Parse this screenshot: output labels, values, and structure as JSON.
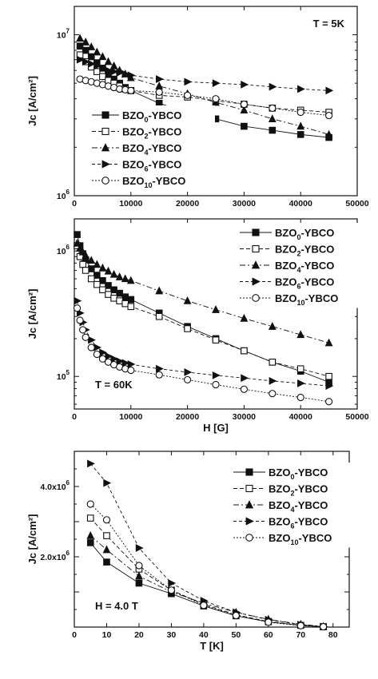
{
  "chart_data": [
    {
      "type": "scatter",
      "annotation": "T = 5K",
      "ylabel": "Jc [A/cm²]",
      "xlabel": "",
      "xlim": [
        0,
        50000
      ],
      "ylim": [
        1000000,
        15000000
      ],
      "yscale": "log",
      "xticks": [
        "0",
        "10000",
        "20000",
        "30000",
        "40000",
        "50000"
      ],
      "yticks": [
        {
          "mant": "10",
          "exp": "6",
          "value": 1000000
        },
        {
          "mant": "10",
          "exp": "7",
          "value": 10000000
        }
      ],
      "legend_position": "lower-left",
      "series": [
        {
          "name": "BZO₀-YBCO",
          "base": "BZO",
          "sub": "0",
          "suffix": "-YBCO",
          "marker": "square-filled",
          "x": [
            1000,
            2000,
            3000,
            4000,
            5000,
            6000,
            7000,
            8000,
            9000,
            10000,
            15000,
            20000,
            25000,
            30000,
            35000,
            40000,
            45000
          ],
          "y": [
            8500000,
            8000000,
            7300000,
            6700000,
            6200000,
            5700000,
            5300000,
            5000000,
            4700000,
            4500000,
            3750000,
            3300000,
            3000000,
            2700000,
            2550000,
            2400000,
            2300000
          ]
        },
        {
          "name": "BZO₂-YBCO",
          "base": "BZO",
          "sub": "2",
          "suffix": "-YBCO",
          "marker": "square-open",
          "x": [
            1000,
            2000,
            3000,
            4000,
            5000,
            6000,
            7000,
            8000,
            9000,
            10000,
            15000,
            20000,
            25000,
            30000,
            35000,
            40000,
            45000
          ],
          "y": [
            7500000,
            6800000,
            6300000,
            5900000,
            5500000,
            5200000,
            5000000,
            4800000,
            4600000,
            4500000,
            4200000,
            4100000,
            3900000,
            3700000,
            3500000,
            3400000,
            3300000
          ]
        },
        {
          "name": "BZO₄-YBCO",
          "base": "BZO",
          "sub": "4",
          "suffix": "-YBCO",
          "marker": "triangle-up",
          "x": [
            1000,
            2000,
            3000,
            4000,
            5000,
            6000,
            7000,
            8000,
            9000,
            10000,
            15000,
            20000,
            25000,
            30000,
            35000,
            40000,
            45000
          ],
          "y": [
            9500000,
            9000000,
            8400000,
            7800000,
            7300000,
            6800000,
            6400000,
            6000000,
            5700000,
            5400000,
            4800000,
            4300000,
            3800000,
            3400000,
            3000000,
            2700000,
            2400000
          ]
        },
        {
          "name": "BZO₆-YBCO",
          "base": "BZO",
          "sub": "6",
          "suffix": "-YBCO",
          "marker": "triangle-right",
          "x": [
            1000,
            2000,
            3000,
            4000,
            5000,
            6000,
            7000,
            8000,
            9000,
            10000,
            15000,
            20000,
            25000,
            30000,
            35000,
            40000,
            45000
          ],
          "y": [
            7000000,
            6800000,
            6600000,
            6400000,
            6200000,
            6000000,
            5900000,
            5800000,
            5700000,
            5600000,
            5300000,
            5100000,
            5000000,
            4900000,
            4750000,
            4600000,
            4500000
          ]
        },
        {
          "name": "BZO₁₀-YBCO",
          "base": "BZO",
          "sub": "10",
          "suffix": "-YBCO",
          "marker": "circle-open",
          "x": [
            1000,
            2000,
            3000,
            4000,
            5000,
            6000,
            7000,
            8000,
            9000,
            10000,
            15000,
            20000,
            25000,
            30000,
            35000,
            40000,
            45000
          ],
          "y": [
            5300000,
            5200000,
            5100000,
            5000000,
            4900000,
            4800000,
            4700000,
            4600000,
            4550000,
            4500000,
            4400000,
            4200000,
            4000000,
            3700000,
            3500000,
            3300000,
            3150000
          ]
        }
      ]
    },
    {
      "type": "scatter",
      "annotation": "T = 60K",
      "ylabel": "Jc [A/cm²]",
      "xlabel": "H [G]",
      "xlim": [
        0,
        50000
      ],
      "ylim": [
        55000,
        1800000
      ],
      "yscale": "log",
      "xticks": [
        "0",
        "10000",
        "20000",
        "30000",
        "40000",
        "50000"
      ],
      "yticks": [
        {
          "mant": "10",
          "exp": "5",
          "value": 100000
        },
        {
          "mant": "10",
          "exp": "6",
          "value": 1000000
        }
      ],
      "legend_position": "top-right",
      "series": [
        {
          "name": "BZO₀-YBCO",
          "base": "BZO",
          "sub": "0",
          "suffix": "-YBCO",
          "marker": "square-filled",
          "x": [
            500,
            1000,
            1500,
            2000,
            3000,
            4000,
            5000,
            6000,
            7000,
            8000,
            9000,
            10000,
            15000,
            20000,
            25000,
            30000,
            35000,
            40000,
            45000
          ],
          "y": [
            1350000,
            1100000,
            950000,
            850000,
            720000,
            640000,
            580000,
            530000,
            490000,
            460000,
            430000,
            410000,
            320000,
            250000,
            200000,
            160000,
            130000,
            110000,
            90000
          ]
        },
        {
          "name": "BZO₂-YBCO",
          "base": "BZO",
          "sub": "2",
          "suffix": "-YBCO",
          "marker": "square-open",
          "x": [
            500,
            1000,
            1500,
            2000,
            3000,
            4000,
            5000,
            6000,
            7000,
            8000,
            9000,
            10000,
            15000,
            20000,
            25000,
            30000,
            35000,
            40000,
            45000
          ],
          "y": [
            1100000,
            900000,
            780000,
            700000,
            600000,
            540000,
            490000,
            450000,
            420000,
            400000,
            380000,
            360000,
            300000,
            240000,
            195000,
            160000,
            130000,
            115000,
            100000
          ]
        },
        {
          "name": "BZO₄-YBCO",
          "base": "BZO",
          "sub": "4",
          "suffix": "-YBCO",
          "marker": "triangle-up",
          "x": [
            500,
            1000,
            1500,
            2000,
            3000,
            4000,
            5000,
            6000,
            7000,
            8000,
            9000,
            10000,
            15000,
            20000,
            25000,
            30000,
            35000,
            40000,
            45000
          ],
          "y": [
            1150000,
            1050000,
            980000,
            920000,
            840000,
            780000,
            730000,
            690000,
            650000,
            620000,
            600000,
            580000,
            480000,
            400000,
            340000,
            290000,
            250000,
            215000,
            185000
          ]
        },
        {
          "name": "BZO₆-YBCO",
          "base": "BZO",
          "sub": "6",
          "suffix": "-YBCO",
          "marker": "triangle-right",
          "x": [
            500,
            1000,
            1500,
            2000,
            3000,
            4000,
            5000,
            6000,
            7000,
            8000,
            9000,
            10000,
            15000,
            20000,
            25000,
            30000,
            35000,
            40000,
            45000
          ],
          "y": [
            400000,
            320000,
            270000,
            235000,
            195000,
            170000,
            155000,
            145000,
            138000,
            132000,
            128000,
            125000,
            115000,
            108000,
            102000,
            97000,
            92000,
            88000,
            84000
          ]
        },
        {
          "name": "BZO₁₀-YBCO",
          "base": "BZO",
          "sub": "10",
          "suffix": "-YBCO",
          "marker": "circle-open",
          "x": [
            500,
            1000,
            1500,
            2000,
            3000,
            4000,
            5000,
            6000,
            7000,
            8000,
            9000,
            10000,
            15000,
            20000,
            25000,
            30000,
            35000,
            40000,
            45000
          ],
          "y": [
            350000,
            280000,
            235000,
            205000,
            170000,
            150000,
            138000,
            130000,
            124000,
            119000,
            115000,
            112000,
            103000,
            94000,
            86000,
            79000,
            73000,
            68000,
            63000
          ]
        }
      ]
    },
    {
      "type": "scatter",
      "annotation": "H = 4.0 T",
      "ylabel": "Jc [A/cm²]",
      "xlabel": "T [K]",
      "xlim": [
        0,
        85
      ],
      "ylim": [
        0,
        5000000
      ],
      "yscale": "linear",
      "xticks": [
        "0",
        "10",
        "20",
        "30",
        "40",
        "50",
        "60",
        "70",
        "80"
      ],
      "yticks": [
        {
          "mant": "2.0x10",
          "exp": "6",
          "value": 2000000
        },
        {
          "mant": "4.0x10",
          "exp": "6",
          "value": 4000000
        }
      ],
      "legend_position": "top-right",
      "series": [
        {
          "name": "BZO₀-YBCO",
          "base": "BZO",
          "sub": "0",
          "suffix": "-YBCO",
          "marker": "square-filled",
          "x": [
            5,
            10,
            20,
            30,
            40,
            50,
            60,
            70,
            77
          ],
          "y": [
            2400000,
            1850000,
            1250000,
            950000,
            600000,
            320000,
            150000,
            50000,
            10000
          ]
        },
        {
          "name": "BZO₂-YBCO",
          "base": "BZO",
          "sub": "2",
          "suffix": "-YBCO",
          "marker": "square-open",
          "x": [
            5,
            10,
            20,
            30,
            40,
            50,
            60,
            70,
            77
          ],
          "y": [
            3100000,
            2600000,
            1650000,
            1050000,
            650000,
            350000,
            160000,
            50000,
            10000
          ]
        },
        {
          "name": "BZO₄-YBCO",
          "base": "BZO",
          "sub": "4",
          "suffix": "-YBCO",
          "marker": "triangle-up",
          "x": [
            5,
            10,
            20,
            30,
            40,
            50,
            60,
            70,
            77
          ],
          "y": [
            2600000,
            2200000,
            1450000,
            1000000,
            680000,
            420000,
            220000,
            80000,
            15000
          ]
        },
        {
          "name": "BZO₆-YBCO",
          "base": "BZO",
          "sub": "6",
          "suffix": "-YBCO",
          "marker": "triangle-right",
          "x": [
            5,
            10,
            20,
            30,
            40,
            50,
            60,
            70,
            77
          ],
          "y": [
            4650000,
            4100000,
            2250000,
            1250000,
            750000,
            420000,
            210000,
            70000,
            15000
          ]
        },
        {
          "name": "BZO₁₀-YBCO",
          "base": "BZO",
          "sub": "10",
          "suffix": "-YBCO",
          "marker": "circle-open",
          "x": [
            5,
            10,
            20,
            30,
            40,
            50,
            60,
            70,
            77
          ],
          "y": [
            3500000,
            3050000,
            1750000,
            1050000,
            620000,
            330000,
            140000,
            40000,
            10000
          ]
        }
      ]
    }
  ]
}
